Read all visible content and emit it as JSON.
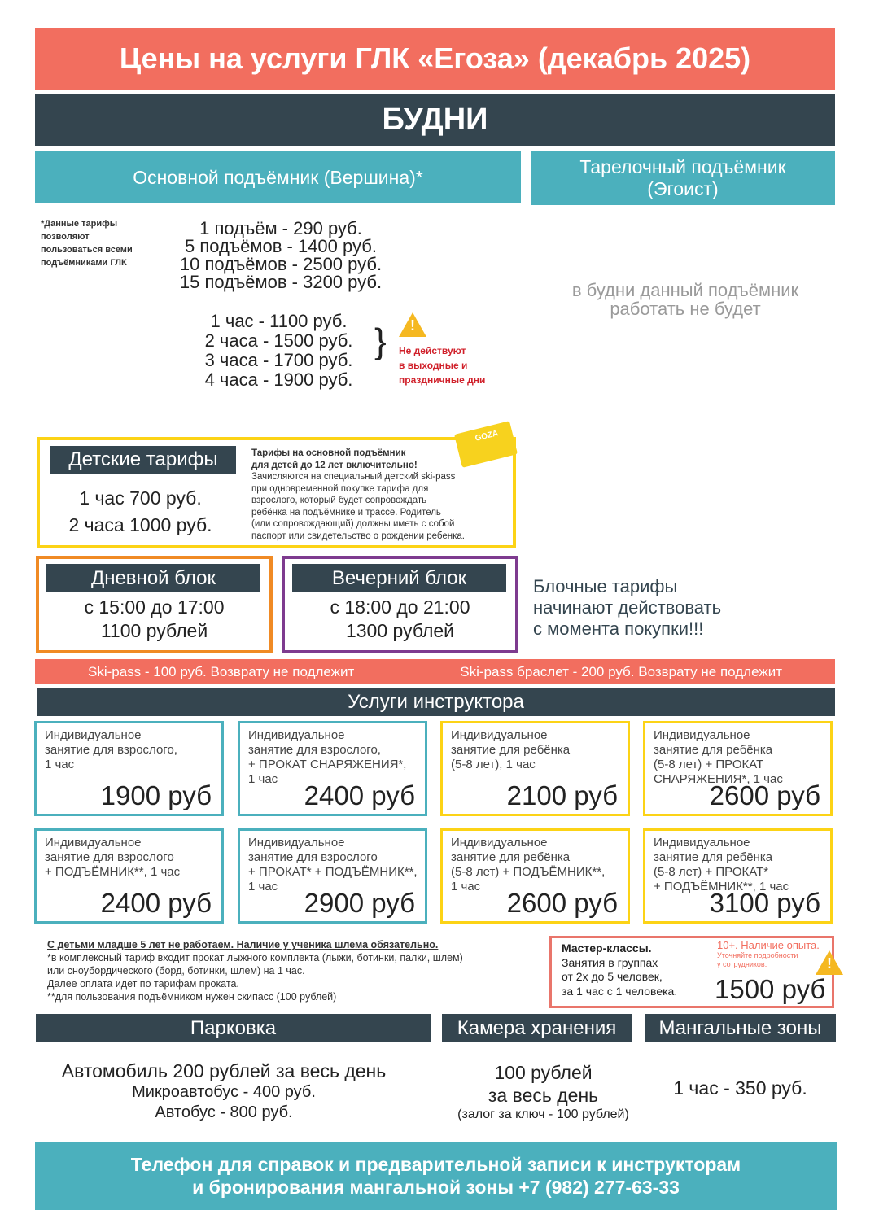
{
  "title": "Цены на услуги ГЛК «Егоза» (декабрь 2025)",
  "weekday_label": "БУДНИ",
  "main_lift": {
    "title": "Основной подъёмник (Вершина)*",
    "footnote": [
      "*Данные тарифы",
      "позволяют",
      "пользоваться всеми",
      "подъёмниками ГЛК"
    ],
    "rides": [
      "1 подъём - 290 руб.",
      "5 подъёмов - 1400 руб.",
      "10 подъёмов - 2500 руб.",
      "15 подъёмов - 3200 руб."
    ],
    "hours": [
      "1 час - 1100 руб.",
      "2 часа - 1500 руб.",
      "3 часа - 1700 руб.",
      "4 часа - 1900 руб."
    ],
    "brace": "}",
    "warning": [
      "Не действуют",
      "в выходные и",
      "праздничные дни"
    ]
  },
  "plate_lift": {
    "title": [
      "Тарелочный подъёмник",
      "(Эгоист)"
    ],
    "note": [
      "в будни данный подъёмник",
      "работать не будет"
    ]
  },
  "children": {
    "label": "Детские тарифы",
    "prices": [
      "1 час 700 руб.",
      "2 часа 1000 руб."
    ],
    "heading": [
      "Тарифы на основной подъёмник",
      "для детей до 12 лет включительно!"
    ],
    "text": [
      "Зачисляются на специальный детский ski-pass",
      "при одновременной покупке тарифа для",
      "взрослого, который будет сопровождать",
      "ребёнка на подъёмнике и трассе. Родитель",
      "(или сопровождающий) должны иметь с собой",
      "паспорт или свидетельство о рождении ребенка."
    ],
    "card_logo": "GOZA"
  },
  "day_block": {
    "label": "Дневной блок",
    "time": "с 15:00 до 17:00",
    "price": "1100 рублей"
  },
  "evening_block": {
    "label": "Вечерний блок",
    "time": "с 18:00 до 21:00",
    "price": "1300 рублей"
  },
  "block_note": [
    "Блочные тарифы",
    "начинают действовать",
    "с момента покупки!!!"
  ],
  "skipass": {
    "left": "Ski-pass - 100 руб. Возврату не подлежит",
    "right": "Ski-pass браслет - 200 руб. Возврату не подлежит"
  },
  "instructor": {
    "title": "Услуги инструктора",
    "cards": [
      {
        "lines": [
          "Индивидуальное",
          "занятие для взрослого,",
          "1 час"
        ],
        "price": "1900 руб"
      },
      {
        "lines": [
          "Индивидуальное",
          "занятие для взрослого,",
          "+ ПРОКАТ СНАРЯЖЕНИЯ*,",
          "1 час"
        ],
        "price": "2400 руб"
      },
      {
        "lines": [
          "Индивидуальное",
          "занятие для ребёнка",
          "(5-8 лет), 1 час"
        ],
        "price": "2100 руб"
      },
      {
        "lines": [
          "Индивидуальное",
          "занятие для ребёнка",
          "(5-8 лет) + ПРОКАТ",
          "СНАРЯЖЕНИЯ*, 1 час"
        ],
        "price": "2600 руб"
      },
      {
        "lines": [
          "Индивидуальное",
          "занятие для взрослого",
          " + ПОДЪЁМНИК**, 1 час"
        ],
        "price": "2400 руб"
      },
      {
        "lines": [
          "Индивидуальное",
          "занятие для взрослого",
          "+ ПРОКАТ*  + ПОДЪЁМНИК**,",
          "1 час"
        ],
        "price": "2900 руб"
      },
      {
        "lines": [
          "Индивидуальное",
          "занятие для ребёнка",
          "(5-8 лет) + ПОДЪЁМНИК**,",
          "1 час"
        ],
        "price": "2600 руб"
      },
      {
        "lines": [
          "Индивидуальное",
          "занятие для ребёнка",
          "(5-8 лет) + ПРОКАТ*",
          "+ ПОДЪЁМНИК**, 1 час"
        ],
        "price": "3100 руб"
      }
    ],
    "notes_heading": "С детьми младше 5 лет не работаем. Наличие у ученика шлема обязательно.",
    "notes": [
      "*в комплексный тариф входит прокат лыжного комплекта (лыжи, ботинки, палки, шлем)",
      "или сноубордического (борд, ботинки, шлем) на 1 час.",
      "Далее оплата идет по тарифам проката.",
      "**для пользования подъёмником нужен скипасс (100 рублей)"
    ]
  },
  "master_class": {
    "title": "Мастер-классы.",
    "lines": [
      "Занятия в группах",
      "от 2х до 5 человек,",
      "за 1 час с 1 человека."
    ],
    "req": "10+. Наличие опыта.",
    "hint": [
      "Уточняйте подробности",
      "у сотрудников."
    ],
    "price": "1500 руб"
  },
  "parking": {
    "title": "Парковка",
    "lines": [
      "Автомобиль 200 рублей за весь день",
      "Микроавтобус - 400 руб.",
      "Автобус - 800 руб."
    ]
  },
  "storage": {
    "title": "Камера хранения",
    "lines": [
      "100 рублей",
      "за весь день",
      "(залог за ключ - 100 рублей)"
    ]
  },
  "bbq": {
    "title": "Мангальные зоны",
    "price": "1 час - 350 руб."
  },
  "footer": [
    "Телефон для справок и предварительной записи к инструкторам",
    "и бронирования мангальной зоны  +7 (982) 277-63-33"
  ],
  "colors": {
    "coral": "#f26e5f",
    "dark": "#34454f",
    "teal": "#4bb0bd",
    "yellow": "#fcd316",
    "orange": "#f08a24",
    "purple": "#7e3b8f",
    "warning_red": "#d0202a"
  }
}
